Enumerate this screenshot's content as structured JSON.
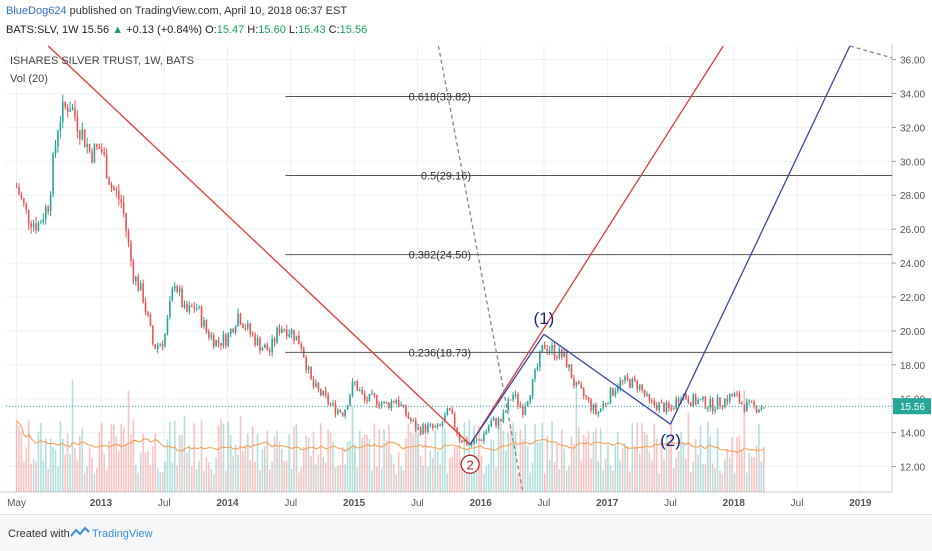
{
  "header": {
    "author": "BlueDog624",
    "published_text": " published on TradingView.com, April 10, 2018 06:37 EST",
    "symbol_line": "BATS:SLV, 1W",
    "last": "15.56",
    "change": "+0.13 (+0.84%)",
    "o_label": "O:",
    "o": "15.47",
    "h_label": "H:",
    "h": "15.60",
    "l_label": "L:",
    "l": "15.43",
    "c_label": "C:",
    "c": "15.56"
  },
  "chart_data": {
    "type": "candlestick",
    "title": "ISHARES SILVER TRUST, 1W, BATS",
    "indicator": "Vol (20)",
    "last_price_label": "15.56",
    "last_price": 15.56,
    "ylim": [
      10.5,
      36.8
    ],
    "y_ticks": [
      12,
      14,
      16,
      18,
      20,
      22,
      24,
      26,
      28,
      30,
      32,
      34,
      36
    ],
    "y_tick_labels": [
      "12.00",
      "14.00",
      "16.00",
      "18.00",
      "20.00",
      "22.00",
      "24.00",
      "26.00",
      "28.00",
      "30.00",
      "32.00",
      "34.00",
      "36.00"
    ],
    "x_ticks": [
      {
        "label": "May",
        "t": "2012-05"
      },
      {
        "label": "2013",
        "t": "2013-01"
      },
      {
        "label": "Jul",
        "t": "2013-07"
      },
      {
        "label": "2014",
        "t": "2014-01"
      },
      {
        "label": "Jul",
        "t": "2014-07"
      },
      {
        "label": "2015",
        "t": "2015-01"
      },
      {
        "label": "Jul",
        "t": "2015-07"
      },
      {
        "label": "2016",
        "t": "2016-01"
      },
      {
        "label": "Jul",
        "t": "2016-07"
      },
      {
        "label": "2017",
        "t": "2017-01"
      },
      {
        "label": "Jul",
        "t": "2017-07"
      },
      {
        "label": "2018",
        "t": "2018-01"
      },
      {
        "label": "Jul",
        "t": "2018-07"
      },
      {
        "label": "2019",
        "t": "2019-01"
      }
    ],
    "fib_levels": [
      {
        "label": "0.236(18.73)",
        "value": 18.73
      },
      {
        "label": "0.382(24.50)",
        "value": 24.5
      },
      {
        "label": "0.5(29.16)",
        "value": 29.16
      },
      {
        "label": "0.618(33.82)",
        "value": 33.82
      }
    ],
    "wave_labels": [
      {
        "text": "(1)",
        "t": "2016-07",
        "price": 20.4
      },
      {
        "text": "(2)",
        "t": "2017-07",
        "price": 13.2
      },
      {
        "text": "2",
        "t": "2015-12",
        "price": 11.9
      }
    ],
    "close_path": [
      {
        "t": "2012-05",
        "p": 28.5
      },
      {
        "t": "2012-06",
        "p": 26.8
      },
      {
        "t": "2012-07",
        "p": 26.2
      },
      {
        "t": "2012-08",
        "p": 27.5
      },
      {
        "t": "2012-09",
        "p": 32.5
      },
      {
        "t": "2012-10",
        "p": 33.5
      },
      {
        "t": "2012-11",
        "p": 32.0
      },
      {
        "t": "2012-12",
        "p": 30.5
      },
      {
        "t": "2013-01",
        "p": 30.8
      },
      {
        "t": "2013-02",
        "p": 28.5
      },
      {
        "t": "2013-03",
        "p": 27.5
      },
      {
        "t": "2013-04",
        "p": 23.5
      },
      {
        "t": "2013-05",
        "p": 22.0
      },
      {
        "t": "2013-06",
        "p": 19.0
      },
      {
        "t": "2013-07",
        "p": 19.5
      },
      {
        "t": "2013-08",
        "p": 23.0
      },
      {
        "t": "2013-09",
        "p": 21.0
      },
      {
        "t": "2013-10",
        "p": 21.5
      },
      {
        "t": "2013-11",
        "p": 20.0
      },
      {
        "t": "2013-12",
        "p": 19.3
      },
      {
        "t": "2014-01",
        "p": 19.6
      },
      {
        "t": "2014-02",
        "p": 21.0
      },
      {
        "t": "2014-03",
        "p": 20.0
      },
      {
        "t": "2014-04",
        "p": 19.2
      },
      {
        "t": "2014-05",
        "p": 18.8
      },
      {
        "t": "2014-06",
        "p": 20.3
      },
      {
        "t": "2014-07",
        "p": 20.0
      },
      {
        "t": "2014-08",
        "p": 19.2
      },
      {
        "t": "2014-09",
        "p": 16.8
      },
      {
        "t": "2014-10",
        "p": 16.2
      },
      {
        "t": "2014-11",
        "p": 15.5
      },
      {
        "t": "2014-12",
        "p": 15.2
      },
      {
        "t": "2015-01",
        "p": 17.0
      },
      {
        "t": "2015-02",
        "p": 15.9
      },
      {
        "t": "2015-03",
        "p": 16.0
      },
      {
        "t": "2015-04",
        "p": 15.6
      },
      {
        "t": "2015-05",
        "p": 16.0
      },
      {
        "t": "2015-06",
        "p": 15.0
      },
      {
        "t": "2015-07",
        "p": 14.2
      },
      {
        "t": "2015-08",
        "p": 14.3
      },
      {
        "t": "2015-09",
        "p": 14.2
      },
      {
        "t": "2015-10",
        "p": 15.3
      },
      {
        "t": "2015-11",
        "p": 13.7
      },
      {
        "t": "2015-12",
        "p": 13.3
      },
      {
        "t": "2016-01",
        "p": 13.6
      },
      {
        "t": "2016-02",
        "p": 14.6
      },
      {
        "t": "2016-03",
        "p": 14.7
      },
      {
        "t": "2016-04",
        "p": 16.3
      },
      {
        "t": "2016-05",
        "p": 15.4
      },
      {
        "t": "2016-06",
        "p": 17.0
      },
      {
        "t": "2016-07",
        "p": 19.2
      },
      {
        "t": "2016-08",
        "p": 18.8
      },
      {
        "t": "2016-09",
        "p": 18.4
      },
      {
        "t": "2016-10",
        "p": 16.7
      },
      {
        "t": "2016-11",
        "p": 16.0
      },
      {
        "t": "2016-12",
        "p": 15.1
      },
      {
        "t": "2017-01",
        "p": 16.0
      },
      {
        "t": "2017-02",
        "p": 16.9
      },
      {
        "t": "2017-03",
        "p": 17.0
      },
      {
        "t": "2017-04",
        "p": 16.8
      },
      {
        "t": "2017-05",
        "p": 15.7
      },
      {
        "t": "2017-06",
        "p": 15.6
      },
      {
        "t": "2017-07",
        "p": 15.3
      },
      {
        "t": "2017-08",
        "p": 16.3
      },
      {
        "t": "2017-09",
        "p": 15.9
      },
      {
        "t": "2017-10",
        "p": 15.8
      },
      {
        "t": "2017-11",
        "p": 15.6
      },
      {
        "t": "2017-12",
        "p": 15.9
      },
      {
        "t": "2018-01",
        "p": 16.2
      },
      {
        "t": "2018-02",
        "p": 15.6
      },
      {
        "t": "2018-03",
        "p": 15.5
      },
      {
        "t": "2018-04",
        "p": 15.56
      }
    ],
    "drawn_lines": [
      {
        "name": "red-downtrend-line",
        "color": "#e53935",
        "from": {
          "t": "2012-08",
          "p": 36.8
        },
        "to": {
          "t": "2015-12",
          "p": 13.3
        }
      },
      {
        "name": "red-projection-line",
        "color": "#e53935",
        "from": {
          "t": "2015-12",
          "p": 13.3
        },
        "to": {
          "t": "2017-12",
          "p": 36.8
        }
      },
      {
        "name": "gray-dashed-line",
        "color": "#888888",
        "dashed": true,
        "from": {
          "t": "2015-09",
          "p": 36.8
        },
        "to": {
          "t": "2016-05",
          "p": 10.5
        }
      },
      {
        "name": "gray-dashed-line-2",
        "color": "#888888",
        "dashed": true,
        "from": {
          "t": "2018-12",
          "p": 36.8
        },
        "to": {
          "t": "2019-04",
          "p": 36.1
        }
      },
      {
        "name": "blue-wave-line-1",
        "color": "#3949ab",
        "from": {
          "t": "2015-12",
          "p": 13.3
        },
        "to": {
          "t": "2016-07",
          "p": 19.8
        }
      },
      {
        "name": "blue-wave-line-2",
        "color": "#3949ab",
        "from": {
          "t": "2016-07",
          "p": 19.8
        },
        "to": {
          "t": "2017-07",
          "p": 14.5
        }
      },
      {
        "name": "blue-projection-line",
        "color": "#3949ab",
        "from": {
          "t": "2017-07",
          "p": 14.5
        },
        "to": {
          "t": "2018-12",
          "p": 36.8
        }
      }
    ],
    "colors": {
      "up": "#26a69a",
      "down": "#ef5350",
      "ma": "#f39c4a",
      "grid": "#eef0f3",
      "fib": "#555555",
      "lastprice": "#26a69a"
    }
  },
  "footer": {
    "created_with": "Created with",
    "brand": "TradingView"
  }
}
